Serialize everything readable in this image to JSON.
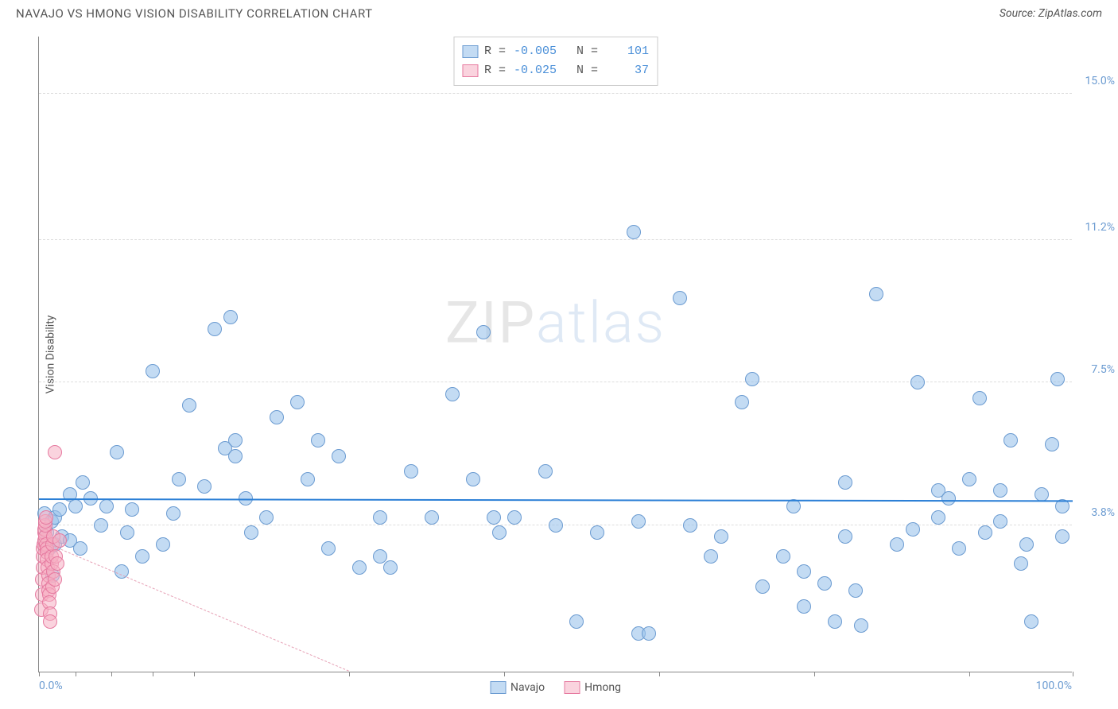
{
  "header": {
    "title": "NAVAJO VS HMONG VISION DISABILITY CORRELATION CHART",
    "source": "Source: ZipAtlas.com"
  },
  "watermark": {
    "part1": "ZIP",
    "part2": "atlas"
  },
  "chart": {
    "type": "scatter",
    "ylabel": "Vision Disability",
    "xlim": [
      0,
      100
    ],
    "ylim": [
      0,
      16.5
    ],
    "background_color": "#ffffff",
    "grid_color": "#dddddd",
    "x_axis_label_min": "0.0%",
    "x_axis_label_max": "100.0%",
    "x_tick_positions_pct": [
      0,
      3.5,
      7,
      11,
      15,
      30,
      45,
      60,
      75,
      90,
      100
    ],
    "y_grid": [
      {
        "value": 15.0,
        "label": "15.0%"
      },
      {
        "value": 11.2,
        "label": "11.2%"
      },
      {
        "value": 7.5,
        "label": "7.5%"
      },
      {
        "value": 3.8,
        "label": "3.8%"
      }
    ],
    "series": [
      {
        "name": "Navajo",
        "marker_color_fill": "rgba(155, 195, 235, 0.6)",
        "marker_color_stroke": "#6b9bd1",
        "marker_radius": 9,
        "R": "-0.005",
        "N": "101",
        "trend": {
          "y_start": 4.45,
          "y_end": 4.4,
          "color": "#2b7fd6",
          "width": 2.5,
          "dash": "solid"
        },
        "points": [
          [
            0.5,
            4.1
          ],
          [
            0.8,
            3.6
          ],
          [
            1.0,
            3.2
          ],
          [
            1.2,
            3.9
          ],
          [
            1.3,
            2.5
          ],
          [
            1.5,
            3.3
          ],
          [
            1.5,
            4.0
          ],
          [
            2.0,
            4.2
          ],
          [
            2.2,
            3.5
          ],
          [
            3.0,
            4.6
          ],
          [
            3.0,
            3.4
          ],
          [
            3.5,
            4.3
          ],
          [
            4.0,
            3.2
          ],
          [
            4.2,
            4.9
          ],
          [
            5.0,
            4.5
          ],
          [
            6.0,
            3.8
          ],
          [
            6.5,
            4.3
          ],
          [
            7.5,
            5.7
          ],
          [
            8.0,
            2.6
          ],
          [
            8.5,
            3.6
          ],
          [
            9.0,
            4.2
          ],
          [
            10.0,
            3.0
          ],
          [
            11.0,
            7.8
          ],
          [
            12.0,
            3.3
          ],
          [
            13.0,
            4.1
          ],
          [
            13.5,
            5.0
          ],
          [
            14.5,
            6.9
          ],
          [
            16.0,
            4.8
          ],
          [
            17.0,
            8.9
          ],
          [
            18.0,
            5.8
          ],
          [
            18.5,
            9.2
          ],
          [
            19.0,
            5.6
          ],
          [
            19.0,
            6.0
          ],
          [
            20.0,
            4.5
          ],
          [
            20.5,
            3.6
          ],
          [
            22.0,
            4.0
          ],
          [
            23.0,
            6.6
          ],
          [
            25.0,
            7.0
          ],
          [
            26.0,
            5.0
          ],
          [
            27.0,
            6.0
          ],
          [
            28.0,
            3.2
          ],
          [
            29.0,
            5.6
          ],
          [
            31.0,
            2.7
          ],
          [
            33.0,
            3.0
          ],
          [
            33.0,
            4.0
          ],
          [
            34.0,
            2.7
          ],
          [
            36.0,
            5.2
          ],
          [
            38.0,
            4.0
          ],
          [
            40.0,
            7.2
          ],
          [
            42.0,
            5.0
          ],
          [
            43.0,
            8.8
          ],
          [
            44.0,
            4.0
          ],
          [
            44.5,
            3.6
          ],
          [
            46.0,
            4.0
          ],
          [
            49.0,
            5.2
          ],
          [
            50.0,
            3.8
          ],
          [
            52.0,
            1.3
          ],
          [
            54.0,
            3.6
          ],
          [
            57.5,
            11.4
          ],
          [
            58.0,
            1.0
          ],
          [
            58.0,
            3.9
          ],
          [
            59.0,
            1.0
          ],
          [
            62.0,
            9.7
          ],
          [
            63.0,
            3.8
          ],
          [
            65.0,
            3.0
          ],
          [
            66.0,
            3.5
          ],
          [
            68.0,
            7.0
          ],
          [
            69.0,
            7.6
          ],
          [
            70.0,
            2.2
          ],
          [
            72.0,
            3.0
          ],
          [
            73.0,
            4.3
          ],
          [
            74.0,
            1.7
          ],
          [
            74.0,
            2.6
          ],
          [
            76.0,
            2.3
          ],
          [
            77.0,
            1.3
          ],
          [
            78.0,
            3.5
          ],
          [
            78.0,
            4.9
          ],
          [
            79.0,
            2.1
          ],
          [
            79.5,
            1.2
          ],
          [
            81.0,
            9.8
          ],
          [
            83.0,
            3.3
          ],
          [
            84.5,
            3.7
          ],
          [
            85.0,
            7.5
          ],
          [
            87.0,
            4.7
          ],
          [
            87.0,
            4.0
          ],
          [
            88.0,
            4.5
          ],
          [
            89.0,
            3.2
          ],
          [
            90.0,
            5.0
          ],
          [
            91.0,
            7.1
          ],
          [
            91.5,
            3.6
          ],
          [
            93.0,
            4.7
          ],
          [
            93.0,
            3.9
          ],
          [
            94.0,
            6.0
          ],
          [
            95.0,
            2.8
          ],
          [
            95.5,
            3.3
          ],
          [
            96.0,
            1.3
          ],
          [
            97.0,
            4.6
          ],
          [
            98.0,
            5.9
          ],
          [
            98.5,
            7.6
          ],
          [
            99.0,
            4.3
          ],
          [
            99.0,
            3.5
          ]
        ]
      },
      {
        "name": "Hmong",
        "marker_color_fill": "rgba(245, 175, 195, 0.55)",
        "marker_color_stroke": "#e67aa0",
        "marker_radius": 9,
        "R": "-0.025",
        "N": "37",
        "trend": {
          "y_start": 3.4,
          "y_end": -0.2,
          "x_end_pct": 30,
          "color": "#e6a0b5",
          "width": 1,
          "dash": "5,5"
        },
        "points": [
          [
            0.2,
            1.6
          ],
          [
            0.3,
            2.0
          ],
          [
            0.3,
            2.4
          ],
          [
            0.35,
            2.7
          ],
          [
            0.4,
            3.0
          ],
          [
            0.4,
            3.2
          ],
          [
            0.45,
            3.3
          ],
          [
            0.5,
            3.4
          ],
          [
            0.5,
            3.6
          ],
          [
            0.55,
            3.7
          ],
          [
            0.6,
            3.5
          ],
          [
            0.6,
            3.8
          ],
          [
            0.65,
            3.9
          ],
          [
            0.7,
            4.0
          ],
          [
            0.7,
            3.3
          ],
          [
            0.75,
            3.2
          ],
          [
            0.8,
            3.1
          ],
          [
            0.8,
            2.9
          ],
          [
            0.85,
            2.7
          ],
          [
            0.9,
            2.5
          ],
          [
            0.9,
            2.3
          ],
          [
            0.95,
            2.1
          ],
          [
            1.0,
            2.0
          ],
          [
            1.0,
            1.8
          ],
          [
            1.1,
            1.5
          ],
          [
            1.1,
            1.3
          ],
          [
            1.2,
            2.8
          ],
          [
            1.2,
            3.0
          ],
          [
            1.3,
            2.2
          ],
          [
            1.3,
            3.3
          ],
          [
            1.4,
            2.6
          ],
          [
            1.4,
            3.5
          ],
          [
            1.5,
            5.7
          ],
          [
            1.5,
            2.4
          ],
          [
            1.6,
            3.0
          ],
          [
            1.8,
            2.8
          ],
          [
            2.0,
            3.4
          ]
        ]
      }
    ],
    "legend_labels": {
      "navajo": "Navajo",
      "hmong": "Hmong",
      "r_prefix": "R =",
      "n_prefix": "N ="
    }
  }
}
